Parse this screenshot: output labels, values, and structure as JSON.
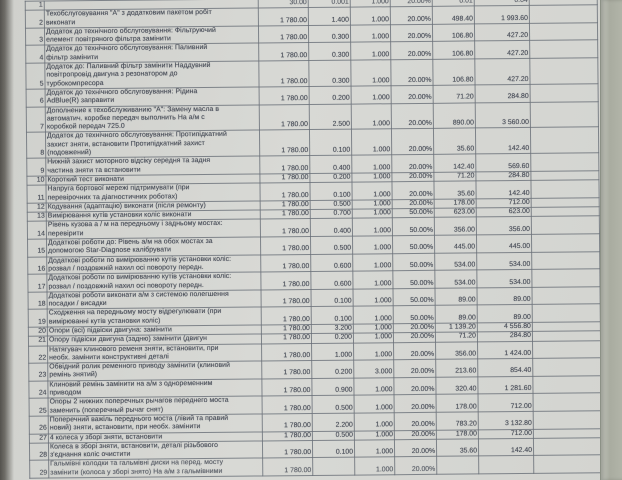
{
  "document": {
    "kind": "service-work-order-table",
    "language": "uk",
    "colors": {
      "paper": "#d6d7d3",
      "ink": "#474c57",
      "grid": "#6e747d",
      "photo_edge_left": "#54524e",
      "photo_edge_right": "#a9aca0"
    },
    "table": {
      "rows": [
        {
          "num": "1",
          "desc": "",
          "values": [
            "30.00",
            "0.001",
            "1.000",
            "20.00%",
            "0.01",
            "0.04"
          ]
        },
        {
          "num": "2",
          "desc": "Техобслуговування \"А\" з додатковим пакетом робіт\nвиконати",
          "values": [
            "1 780.00",
            "1.400",
            "1.000",
            "20.00%",
            "498.40",
            "1 993.60"
          ]
        },
        {
          "num": "3",
          "desc": "Додаток до технічного обслуговування: Фільтруючий\nелемент повітряного фільтра замінити",
          "values": [
            "1 780.00",
            "0.300",
            "1.000",
            "20.00%",
            "106.80",
            "427.20"
          ]
        },
        {
          "num": "4",
          "desc": "Додаток до технічного обслуговування: Паливний\nфільтр замінити",
          "values": [
            "1 780.00",
            "0.300",
            "1.000",
            "20.00%",
            "106.80",
            "427.20"
          ]
        },
        {
          "num": "5",
          "desc": "Додаток до: Паливний фільтр замінити Наддувний\nповітропровід двигуна з резонатором до\nтурбокомпресора",
          "values": [
            "1 780.00",
            "0.300",
            "1.000",
            "20.00%",
            "106.80",
            "427.20"
          ]
        },
        {
          "num": "6",
          "desc": "Додаток до технічного обслуговування: Рідина\nAdBlue(R) заправити",
          "values": [
            "1 780.00",
            "0.200",
            "1.000",
            "20.00%",
            "71.20",
            "284.80"
          ]
        },
        {
          "num": "7",
          "desc": "Дополнение к техобслуживанию \"А\": Замену масла в\nавтоматич. коробке передач выполнить На а/м с\nкоробкой передач 725.0",
          "values": [
            "1 780.00",
            "2.500",
            "1.000",
            "20.00%",
            "890.00",
            "3 560.00"
          ]
        },
        {
          "num": "8",
          "desc": "Додаток до технічного обслуговування: Протипідкатний\nзахист зняти, встановити Протипідкатний захист\n(подовжений)",
          "values": [
            "1 780.00",
            "0.100",
            "1.000",
            "20.00%",
            "35.60",
            "142.40"
          ]
        },
        {
          "num": "9",
          "desc": "Нижній захист моторного відсіку середня та задня\nчастина зняти та встановити",
          "values": [
            "1 780.00",
            "0.400",
            "1.000",
            "20.00%",
            "142.40",
            "569.60"
          ]
        },
        {
          "num": "10",
          "desc": "Короткий тест виконати",
          "values": [
            "1 780.00",
            "0.200",
            "1.000",
            "20.00%",
            "71.20",
            "284.80"
          ]
        },
        {
          "num": "11",
          "desc": "Напруга бортової мережі підтримувати (при\nперевірочних та діагностичних роботах)",
          "values": [
            "1 780.00",
            "0.100",
            "1.000",
            "20.00%",
            "35.60",
            "142.40"
          ]
        },
        {
          "num": "12",
          "desc": "Кодування (адаптацію) виконати (після ремонту)",
          "values": [
            "1 780.00",
            "0.500",
            "1.000",
            "20.00%",
            "178.00",
            "712.00"
          ]
        },
        {
          "num": "13",
          "desc": "Вимірювання кутів установки коліс виконати",
          "values": [
            "1 780.00",
            "0.700",
            "1.000",
            "50.00%",
            "623.00",
            "623.00"
          ]
        },
        {
          "num": "14",
          "desc": "Рівень кузова а / м на передньому і задньому мостах:\nперевірити",
          "values": [
            "1 780.00",
            "0.400",
            "1.000",
            "50.00%",
            "356.00",
            "356.00"
          ]
        },
        {
          "num": "15",
          "desc": "Додаткові  роботи до: Рівень а/м на обох мостах за\nдопомогою Star-Diagnose калібрувати",
          "values": [
            "1 780.00",
            "0.500",
            "1.000",
            "50.00%",
            "445.00",
            "445.00"
          ]
        },
        {
          "num": "16",
          "desc": "Додаткові роботи по вимірюванню кутів установки коліс:\nрозвал / поздовжній нахил осі повороту передн.",
          "values": [
            "1 780.00",
            "0.600",
            "1.000",
            "50.00%",
            "534.00",
            "534.00"
          ]
        },
        {
          "num": "17",
          "desc": "Додаткові роботи по вимірюванню кутів установки коліс:\nрозвал / поздовжній нахил осі повороту передн.",
          "values": [
            "1 780.00",
            "0.600",
            "1.000",
            "50.00%",
            "534.00",
            "534.00"
          ]
        },
        {
          "num": "18",
          "desc": "Додаткові роботи виконати а/м з системою полегшення\nпосадки / висадки",
          "values": [
            "1 780.00",
            "0.100",
            "1.000",
            "50.00%",
            "89.00",
            "89.00"
          ]
        },
        {
          "num": "19",
          "desc": "Сходження на передньому мосту відрегулювати (при\nвимірюванні кутів установки коліс)",
          "values": [
            "1 780.00",
            "0.100",
            "1.000",
            "50.00%",
            "89.00",
            "89.00"
          ]
        },
        {
          "num": "20",
          "desc": "Опори (всі) підвіски двигуна: замінити",
          "values": [
            "1 780.00",
            "3.200",
            "1.000",
            "20.00%",
            "1 139.20",
            "4 556.80"
          ]
        },
        {
          "num": "21",
          "desc": "Опору підвіски двигуна (задню) замінити (двигун",
          "values": [
            "1 780.00",
            "0.200",
            "1.000",
            "20.00%",
            "71.20",
            "284.80"
          ]
        },
        {
          "num": "22",
          "desc": "Натягувач клинового ременя зняти, встановити, при\nнеобх. замінити конструктивні деталі",
          "values": [
            "1 780.00",
            "1.000",
            "1.000",
            "20.00%",
            "356.00",
            "1 424.00"
          ]
        },
        {
          "num": "23",
          "desc": "Обвідний ролик ременного приводу замінити (клиновий\nремінь знятий)",
          "values": [
            "1 780.00",
            "0.200",
            "3.000",
            "20.00%",
            "213.60",
            "854.40"
          ]
        },
        {
          "num": "24",
          "desc": "Клиновий ремінь замінити на а/м з одноременним\nприводом",
          "values": [
            "1 780.00",
            "0.900",
            "1.000",
            "20.00%",
            "320.40",
            "1 281.60"
          ]
        },
        {
          "num": "25",
          "desc": "Опоры 2 нижних поперечных рычагов переднего моста\nзаменить (поперечный рычаг снят)",
          "values": [
            "1 780.00",
            "0.500",
            "1.000",
            "20.00%",
            "178.00",
            "712.00"
          ]
        },
        {
          "num": "26",
          "desc": "Поперечний важіль переднього моста (лівий та правий\nновий) зняти, встановити, при необх. замінити",
          "values": [
            "1 780.00",
            "2.200",
            "1.000",
            "20.00%",
            "783.20",
            "3 132.80"
          ]
        },
        {
          "num": "27",
          "desc": "4 колеса у зборі зняти, встановити",
          "values": [
            "1 780.00",
            "0.500",
            "1.000",
            "20.00%",
            "178.00",
            "712.00"
          ]
        },
        {
          "num": "28",
          "desc": "Колеса в зборі зняти, встановити, деталі різьбового\nз'єднання коліс очистити",
          "values": [
            "1 780.00",
            "0.100",
            "1.000",
            "20.00%",
            "35.60",
            "142.40"
          ]
        },
        {
          "num": "29",
          "desc": "Гальмівні колодки та гальмівні диски на перед. мосту\nзамінити (колоса у зборі знято) На а/м з гальмівними",
          "values": [
            "1 780.00",
            "",
            "1.000",
            "20.00%",
            "",
            ""
          ]
        }
      ]
    }
  }
}
